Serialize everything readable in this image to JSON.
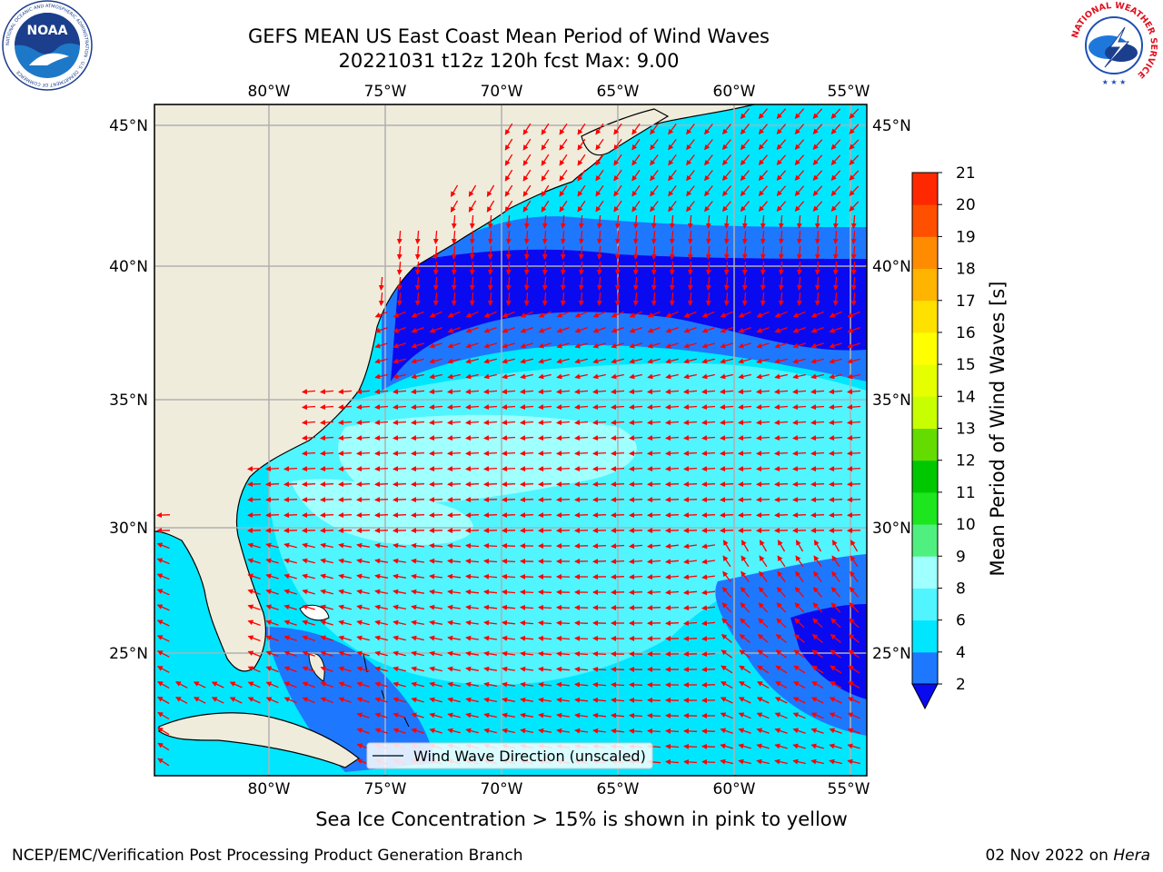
{
  "header": {
    "title_line1": "GEFS MEAN US East Coast Mean Period of Wind Waves",
    "title_line2": "20221031 t12z 120h fcst   Max: 9.00"
  },
  "map": {
    "lon_labels": [
      "80°W",
      "75°W",
      "70°W",
      "65°W",
      "60°W",
      "55°W"
    ],
    "lat_labels": [
      "45°N",
      "40°N",
      "35°N",
      "30°N",
      "25°N"
    ],
    "legend_label": "Wind Wave Direction (unscaled)",
    "arrow_color": "#ff0000",
    "land_color": "#efecdc",
    "grid_color": "#b0b0b0"
  },
  "colorbar": {
    "label": "Mean Period of Wind Waves [s]",
    "ticks": [
      "2",
      "4",
      "6",
      "8",
      "9",
      "10",
      "11",
      "12",
      "13",
      "14",
      "15",
      "16",
      "17",
      "18",
      "19",
      "20",
      "21"
    ],
    "colors": [
      "#0a0af0",
      "#1e78ff",
      "#00e6ff",
      "#50f5ff",
      "#a0ffff",
      "#50f080",
      "#1ee61e",
      "#00c800",
      "#64dc00",
      "#c8ff00",
      "#e6ff00",
      "#ffff00",
      "#ffe100",
      "#ffb400",
      "#ff8c00",
      "#ff5000",
      "#ff2800",
      "#ff0000"
    ]
  },
  "logos": {
    "noaa_text": "NOAA",
    "noaa_ring": "NATIONAL OCEANIC AND ATMOSPHERIC ADMINISTRATION · U.S. DEPARTMENT OF COMMERCE",
    "nws_ring": "NATIONAL WEATHER SERVICE"
  },
  "note": "Sea Ice Concentration > 15% is shown in pink to yellow",
  "footer": {
    "left": "NCEP/EMC/Verification Post Processing Product Generation Branch",
    "date": "02 Nov 2022 on ",
    "host": "Hera"
  }
}
